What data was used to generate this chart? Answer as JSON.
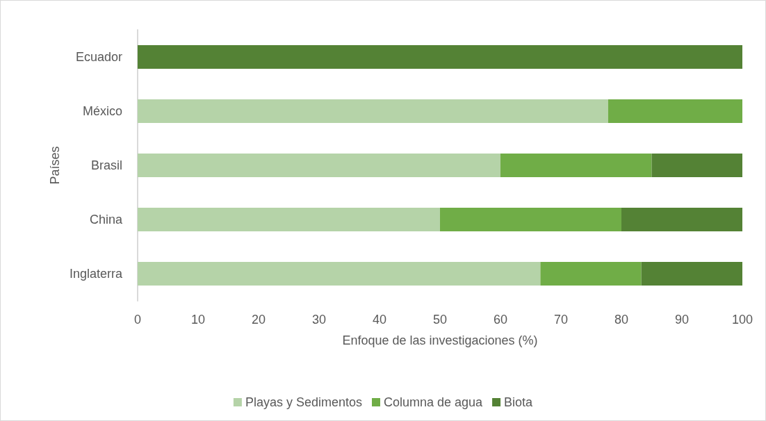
{
  "chart_data": {
    "type": "bar",
    "orientation": "horizontal",
    "stacked": true,
    "xlabel": "Enfoque de las investigaciones (%)",
    "ylabel": "Países",
    "categories": [
      "Ecuador",
      "México",
      "Brasil",
      "China",
      "Inglaterra"
    ],
    "series": [
      {
        "name": "Playas y Sedimentos",
        "color": "#b5d3a8",
        "values": [
          0,
          77.8,
          60,
          50,
          66.6
        ]
      },
      {
        "name": "Columna de agua",
        "color": "#70ad47",
        "values": [
          0,
          22.2,
          25,
          30,
          16.7
        ]
      },
      {
        "name": "Biota",
        "color": "#548235",
        "values": [
          100,
          0,
          15,
          20,
          16.7
        ]
      }
    ],
    "xlim": [
      0,
      100
    ],
    "xticks": [
      0,
      10,
      20,
      30,
      40,
      50,
      60,
      70,
      80,
      90,
      100
    ],
    "grid": false,
    "legend": "bottom"
  }
}
